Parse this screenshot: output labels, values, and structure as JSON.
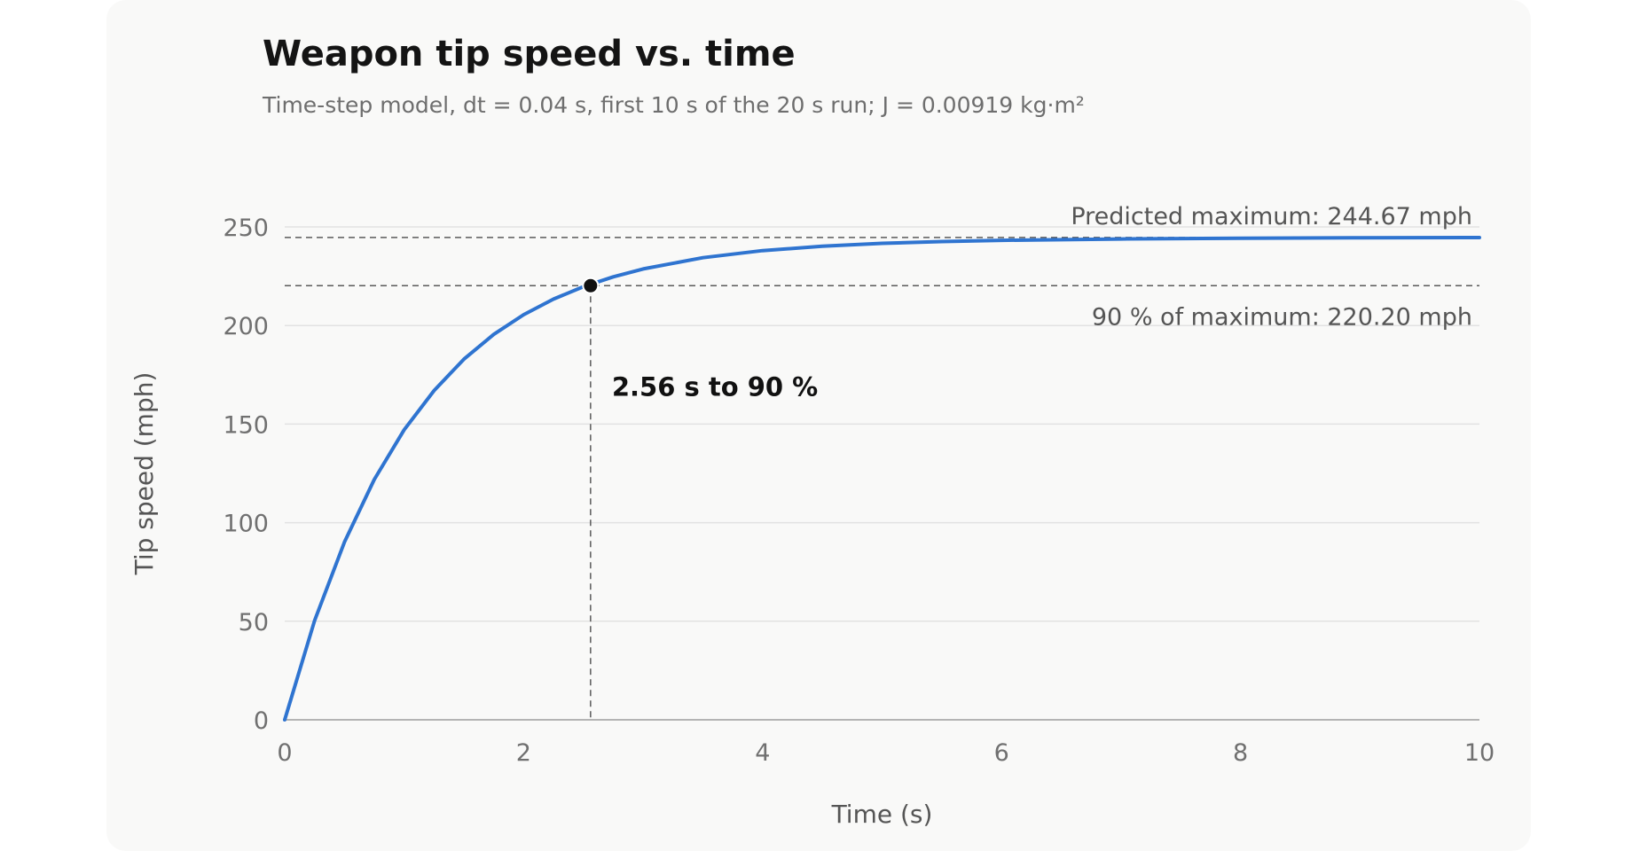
{
  "chart_data": {
    "type": "line",
    "title": "Weapon tip speed vs. time",
    "subtitle": "Time-step model, dt = 0.04 s, first 10 s of the 20 s run; J = 0.00919 kg·m²",
    "xlabel": "Time (s)",
    "ylabel": "Tip speed (mph)",
    "xlim": [
      0,
      10
    ],
    "ylim": [
      0,
      250
    ],
    "x_ticks": [
      0,
      2,
      4,
      6,
      8,
      10
    ],
    "y_ticks": [
      0,
      50,
      100,
      150,
      200,
      250
    ],
    "grid": "horizontal",
    "series_color": "#2f74d0",
    "series": [
      {
        "x": [
          0,
          0.25,
          0.5,
          0.75,
          1,
          1.25,
          1.5,
          1.75,
          2,
          2.25,
          2.5,
          2.75,
          3,
          3.5,
          4,
          4.5,
          5,
          5.5,
          6,
          7,
          8,
          9,
          10
        ],
        "y": [
          0,
          50.3,
          90.2,
          121.9,
          147.1,
          167.0,
          182.9,
          195.5,
          205.5,
          213.4,
          219.7,
          224.7,
          228.7,
          234.4,
          238.0,
          240.2,
          241.7,
          242.6,
          243.2,
          243.9,
          244.3,
          244.5,
          244.6
        ]
      }
    ],
    "reference_lines": [
      {
        "y": 244.67,
        "label": "Predicted maximum: 244.67 mph"
      },
      {
        "y": 220.2,
        "label": "90 % of maximum: 220.20 mph"
      }
    ],
    "marker": {
      "x": 2.56,
      "y": 220.2,
      "label": "2.56 s to 90 %"
    }
  }
}
